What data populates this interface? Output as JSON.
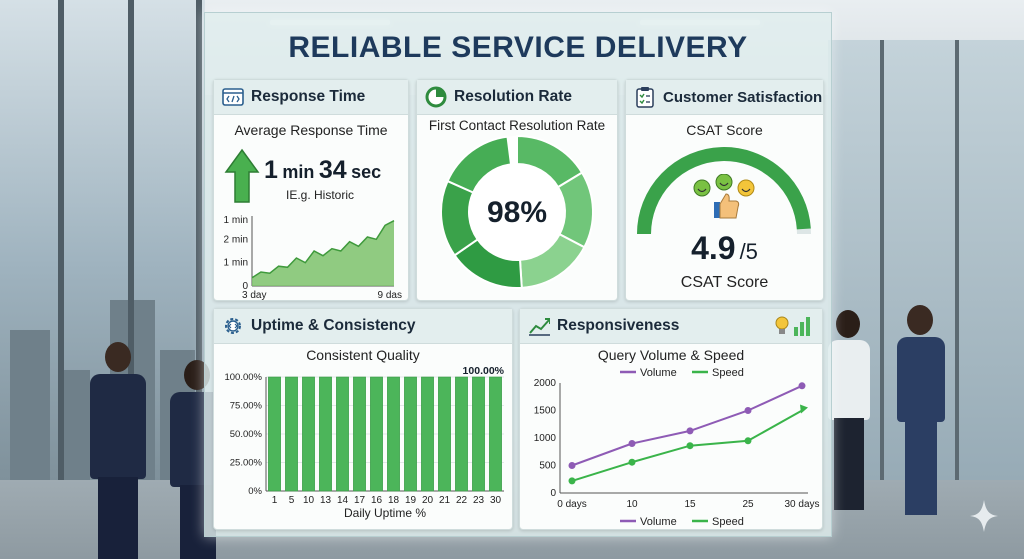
{
  "title": "RELIABLE SERVICE DELIVERY",
  "response": {
    "header": "Response Time",
    "subtitle": "Average Response Time",
    "value_num1": "1",
    "value_unit1": "min",
    "value_num2": "34",
    "value_unit2": "sec",
    "note": "IE.g. Historic",
    "chart_data": {
      "type": "area",
      "y_tick_labels": [
        "0",
        "1 min",
        "2 min",
        "1 min"
      ],
      "x_tick_labels": [
        "3 day",
        "9 das"
      ],
      "values": [
        0.35,
        0.6,
        0.55,
        0.85,
        0.8,
        1.2,
        1.0,
        1.5,
        1.3,
        1.6,
        1.5,
        1.9,
        1.7,
        2.1,
        2.0,
        2.6,
        2.8
      ],
      "ylim": [
        0,
        3.0
      ],
      "color": "#7cc26b"
    }
  },
  "resolution": {
    "header": "Resolution Rate",
    "subtitle": "First Contact Resolution Rate",
    "center_label": "98%",
    "chart_data": {
      "type": "pie",
      "values": [
        98,
        2
      ],
      "colors": [
        "#3aa24a",
        "#ffffff"
      ],
      "segments": 6
    }
  },
  "csat": {
    "header": "Customer Satisfaction",
    "subtitle": "CSAT Score",
    "score": "4.9",
    "out_of": "/5",
    "footer": "CSAT Score",
    "chart_data": {
      "type": "gauge",
      "value": 4.9,
      "max": 5,
      "color": "#3aa24a"
    }
  },
  "uptime": {
    "header": "Uptime & Consistency",
    "subtitle": "Consistent Quality",
    "top_label": "100.00%",
    "xlabel": "Daily Uptime %",
    "chart_data": {
      "type": "bar",
      "categories": [
        "1",
        "5",
        "10",
        "13",
        "14",
        "17",
        "16",
        "18",
        "19",
        "20",
        "21",
        "22",
        "23",
        "30"
      ],
      "values": [
        100,
        100,
        100,
        100,
        100,
        100,
        100,
        100,
        100,
        100,
        100,
        100,
        100,
        100
      ],
      "y_tick_labels": [
        "0%",
        "25.00%",
        "50.00%",
        "75.00%",
        "100.00%"
      ],
      "ylim": [
        0,
        100
      ],
      "color": "#4cb55a"
    }
  },
  "responsiveness": {
    "header": "Responsiveness",
    "subtitle": "Query Volume & Speed",
    "chart_data": {
      "type": "line",
      "x_tick_labels": [
        "0 days",
        "10",
        "15",
        "25",
        "30 days"
      ],
      "ylim": [
        0,
        2000
      ],
      "y_tick_labels": [
        "0",
        "500",
        "1000",
        "1500",
        "2000"
      ],
      "series": [
        {
          "name": "Volume",
          "color": "#8e5bb5",
          "values": [
            500,
            900,
            1130,
            1500,
            1950
          ]
        },
        {
          "name": "Speed",
          "color": "#3ab44a",
          "values": [
            220,
            560,
            860,
            950,
            1500
          ]
        }
      ]
    }
  }
}
